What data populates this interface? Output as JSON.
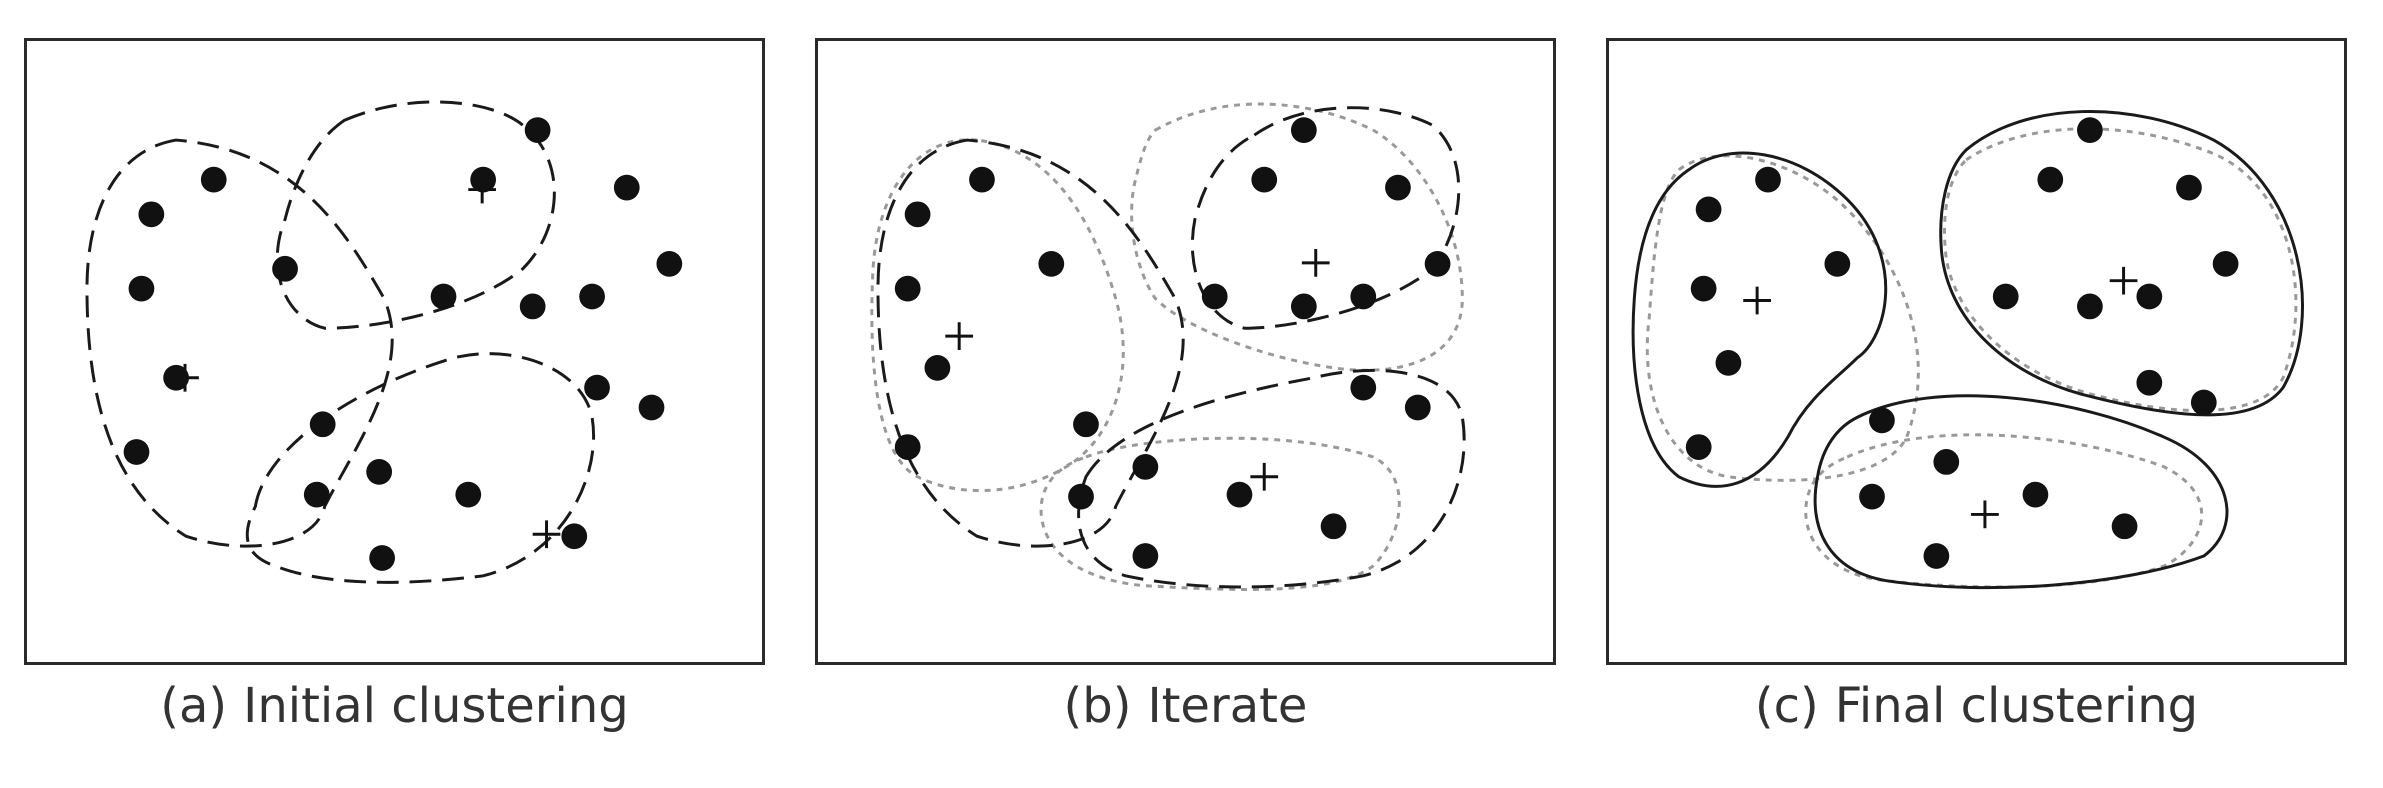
{
  "panels": [
    {
      "id": "a",
      "tag": "(a)",
      "caption": "Initial clustering"
    },
    {
      "id": "b",
      "tag": "(b)",
      "caption": "Iterate"
    },
    {
      "id": "c",
      "tag": "(c)",
      "caption": "Final clustering"
    }
  ],
  "colors": {
    "point": "#111111",
    "previous_boundary": "#999999",
    "frame": "#2a2a2a",
    "caption": "#333333"
  },
  "legend_semantics": {
    "point": "black dot",
    "centroid": "plus marker",
    "boundary": "closed curve"
  }
}
